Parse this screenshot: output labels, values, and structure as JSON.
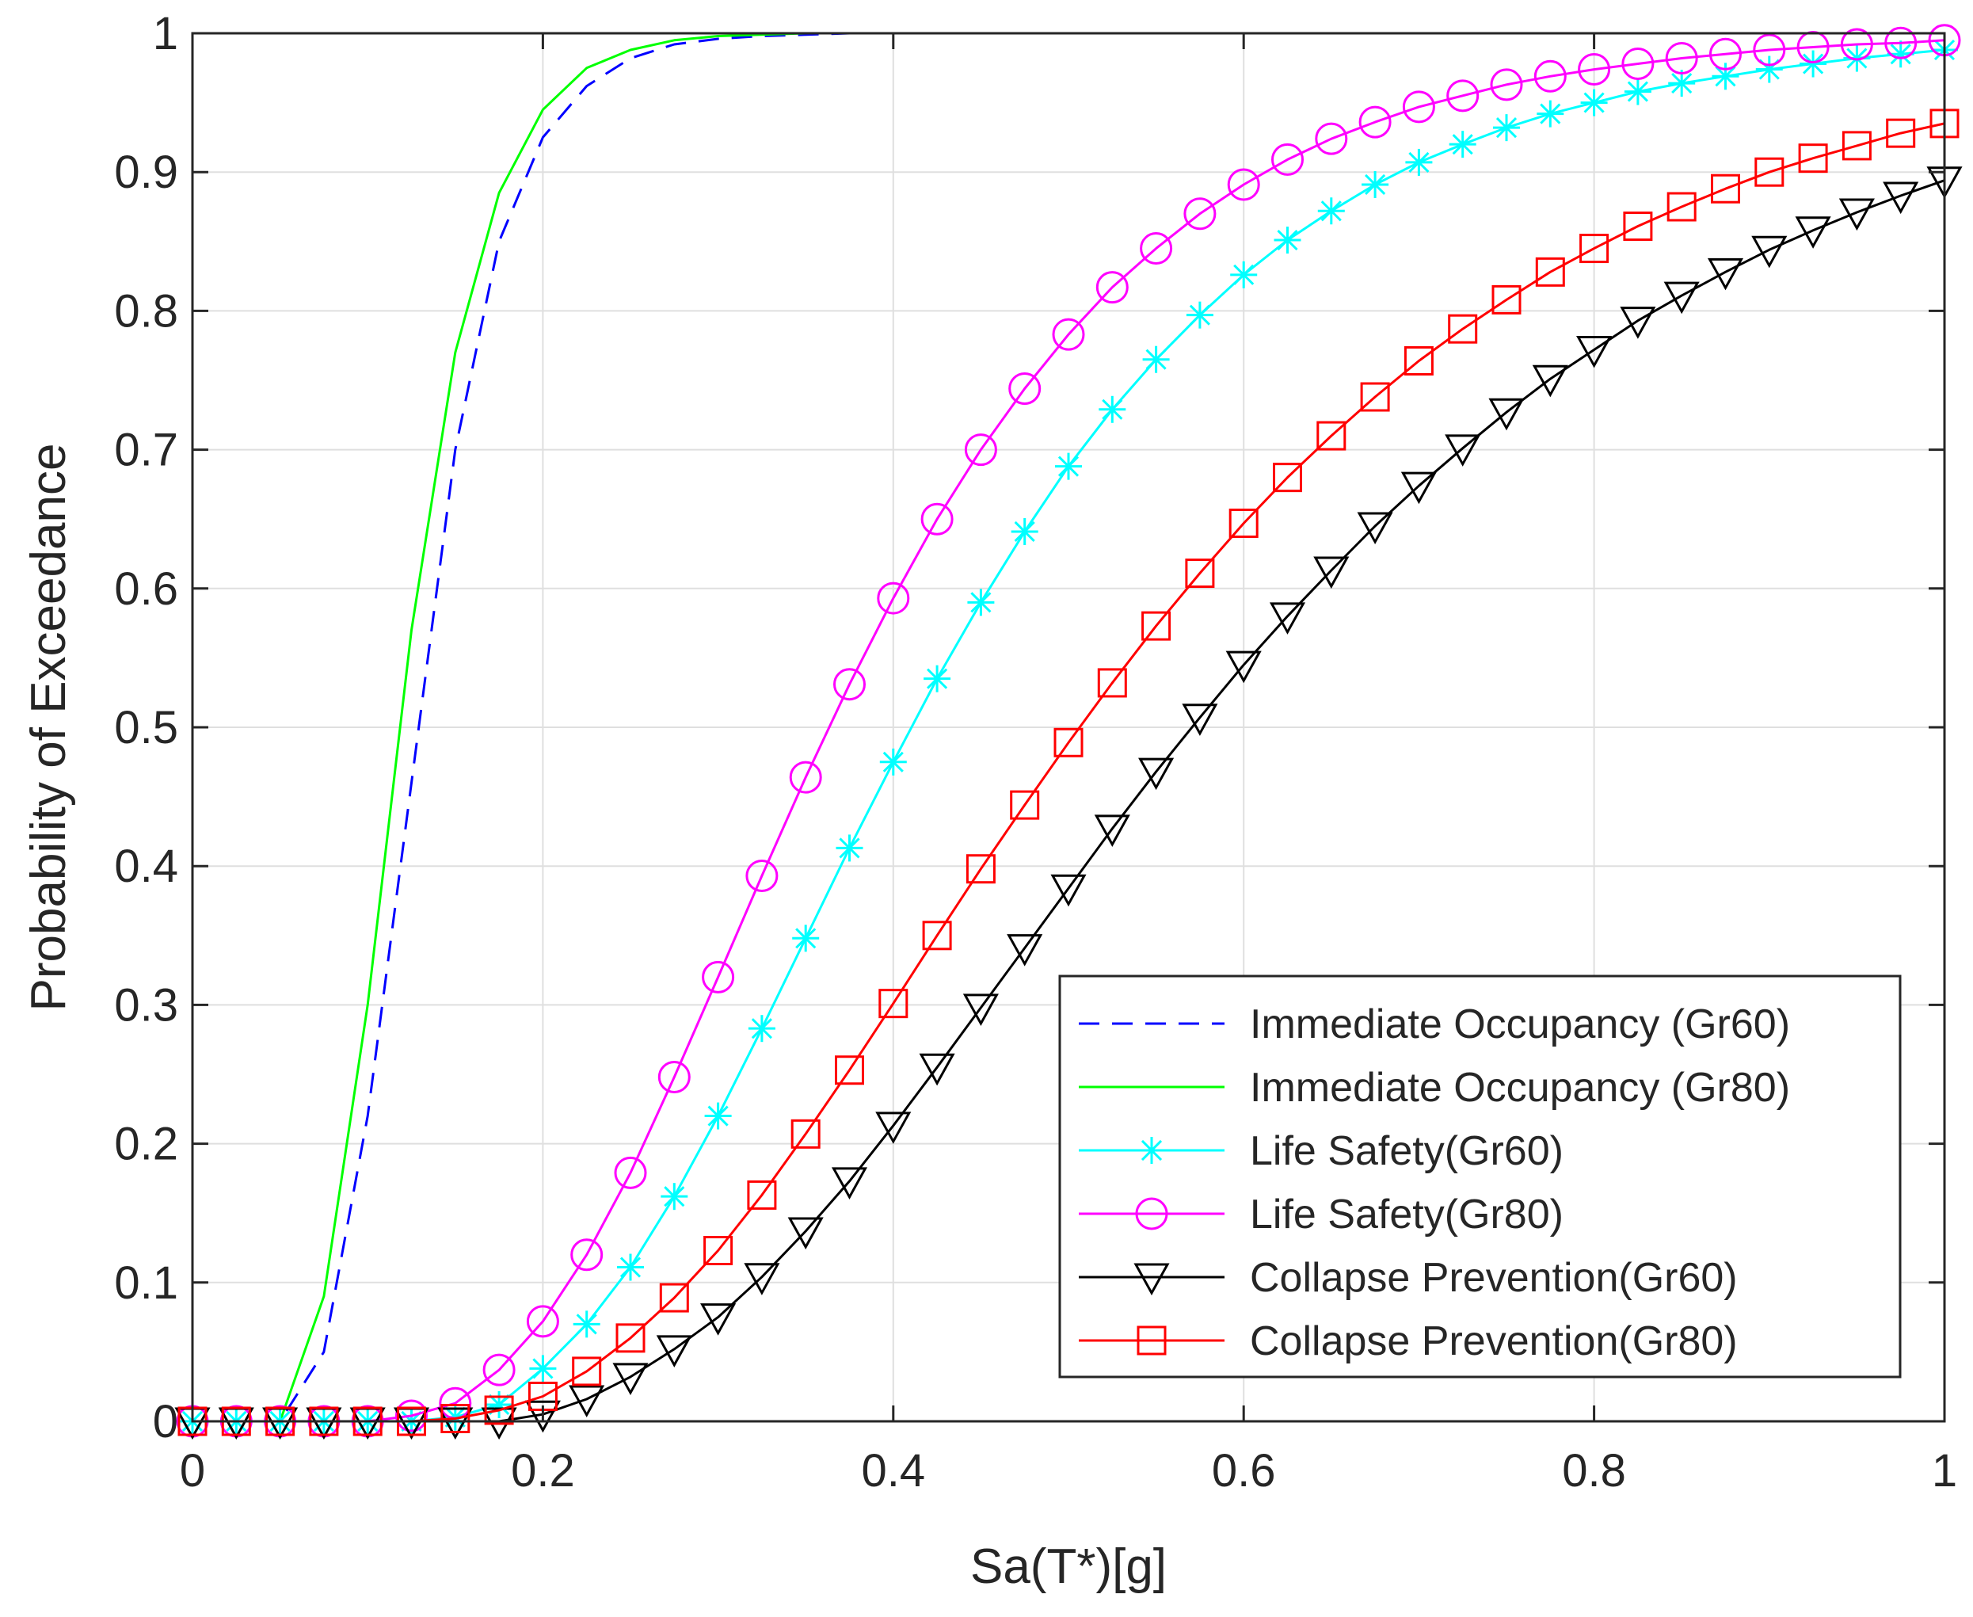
{
  "chart_data": {
    "type": "line",
    "title": "",
    "xlabel": "Sa(T*)[g]",
    "ylabel": "Probability of Exceedance",
    "xlim": [
      0,
      1
    ],
    "ylim": [
      0,
      1
    ],
    "grid": true,
    "legend_position": "bottom-right",
    "x_ticks": [
      0,
      0.2,
      0.4,
      0.6,
      0.8,
      1
    ],
    "x_tick_labels": [
      "0",
      "0.2",
      "0.4",
      "0.6",
      "0.8",
      "1"
    ],
    "y_ticks": [
      0,
      0.1,
      0.2,
      0.3,
      0.4,
      0.5,
      0.6,
      0.7,
      0.8,
      0.9,
      1
    ],
    "y_tick_labels": [
      "0",
      "0.1",
      "0.2",
      "0.3",
      "0.4",
      "0.5",
      "0.6",
      "0.7",
      "0.8",
      "0.9",
      "1"
    ],
    "x": [
      0,
      0.025,
      0.05,
      0.075,
      0.1,
      0.125,
      0.15,
      0.175,
      0.2,
      0.225,
      0.25,
      0.275,
      0.3,
      0.325,
      0.35,
      0.375,
      0.4,
      0.425,
      0.45,
      0.475,
      0.5,
      0.525,
      0.55,
      0.575,
      0.6,
      0.625,
      0.65,
      0.675,
      0.7,
      0.725,
      0.75,
      0.775,
      0.8,
      0.825,
      0.85,
      0.875,
      0.9,
      0.925,
      0.95,
      0.975,
      1
    ],
    "series": [
      {
        "name": "Immediate Occupancy (Gr60)",
        "color": "#0000ff",
        "line": "dashed",
        "marker": "none",
        "values": [
          0,
          0,
          0,
          0.05,
          0.22,
          0.46,
          0.7,
          0.85,
          0.925,
          0.962,
          0.982,
          0.992,
          0.996,
          0.998,
          0.999,
          1,
          1,
          1,
          1,
          1,
          1,
          1,
          1,
          1,
          1,
          1,
          1,
          1,
          1,
          1,
          1,
          1,
          1,
          1,
          1,
          1,
          1,
          1,
          1,
          1,
          1
        ]
      },
      {
        "name": "Immediate Occupancy (Gr80)",
        "color": "#00ff00",
        "line": "solid",
        "marker": "none",
        "values": [
          0,
          0,
          0,
          0.09,
          0.3,
          0.57,
          0.77,
          0.885,
          0.945,
          0.975,
          0.988,
          0.995,
          0.998,
          0.999,
          1,
          1,
          1,
          1,
          1,
          1,
          1,
          1,
          1,
          1,
          1,
          1,
          1,
          1,
          1,
          1,
          1,
          1,
          1,
          1,
          1,
          1,
          1,
          1,
          1,
          1,
          1
        ]
      },
      {
        "name": "Life Safety(Gr60)",
        "color": "#00ffff",
        "line": "solid",
        "marker": "asterisk",
        "values": [
          0,
          0,
          0,
          0,
          0,
          0,
          0.003,
          0.012,
          0.038,
          0.07,
          0.111,
          0.162,
          0.22,
          0.283,
          0.348,
          0.413,
          0.475,
          0.535,
          0.59,
          0.641,
          0.688,
          0.729,
          0.765,
          0.797,
          0.826,
          0.851,
          0.872,
          0.891,
          0.907,
          0.92,
          0.932,
          0.942,
          0.95,
          0.958,
          0.964,
          0.969,
          0.974,
          0.978,
          0.982,
          0.985,
          0.988
        ]
      },
      {
        "name": "Life Safety(Gr80)",
        "color": "#ff00ff",
        "line": "solid",
        "marker": "circle",
        "values": [
          0,
          0,
          0,
          0,
          0,
          0.004,
          0.013,
          0.037,
          0.072,
          0.12,
          0.179,
          0.248,
          0.32,
          0.393,
          0.464,
          0.531,
          0.593,
          0.65,
          0.7,
          0.744,
          0.783,
          0.817,
          0.845,
          0.87,
          0.891,
          0.909,
          0.924,
          0.936,
          0.947,
          0.955,
          0.963,
          0.969,
          0.974,
          0.978,
          0.982,
          0.985,
          0.988,
          0.99,
          0.992,
          0.993,
          0.995
        ]
      },
      {
        "name": "Collapse Prevention(Gr60)",
        "color": "#000000",
        "line": "solid",
        "marker": "triangle-down",
        "values": [
          0,
          0,
          0,
          0,
          0,
          0,
          0,
          0,
          0.005,
          0.016,
          0.032,
          0.052,
          0.075,
          0.104,
          0.137,
          0.173,
          0.213,
          0.255,
          0.298,
          0.341,
          0.384,
          0.427,
          0.468,
          0.507,
          0.545,
          0.58,
          0.613,
          0.645,
          0.674,
          0.701,
          0.727,
          0.751,
          0.772,
          0.793,
          0.811,
          0.828,
          0.844,
          0.858,
          0.871,
          0.883,
          0.894
        ]
      },
      {
        "name": "Collapse Prevention(Gr80)",
        "color": "#ff0000",
        "line": "solid",
        "marker": "square",
        "values": [
          0,
          0,
          0,
          0,
          0,
          0,
          0.002,
          0.008,
          0.018,
          0.036,
          0.06,
          0.089,
          0.123,
          0.163,
          0.207,
          0.253,
          0.301,
          0.35,
          0.398,
          0.444,
          0.489,
          0.532,
          0.573,
          0.611,
          0.647,
          0.68,
          0.71,
          0.738,
          0.764,
          0.787,
          0.808,
          0.828,
          0.845,
          0.861,
          0.875,
          0.888,
          0.9,
          0.91,
          0.919,
          0.928,
          0.935
        ]
      }
    ]
  }
}
